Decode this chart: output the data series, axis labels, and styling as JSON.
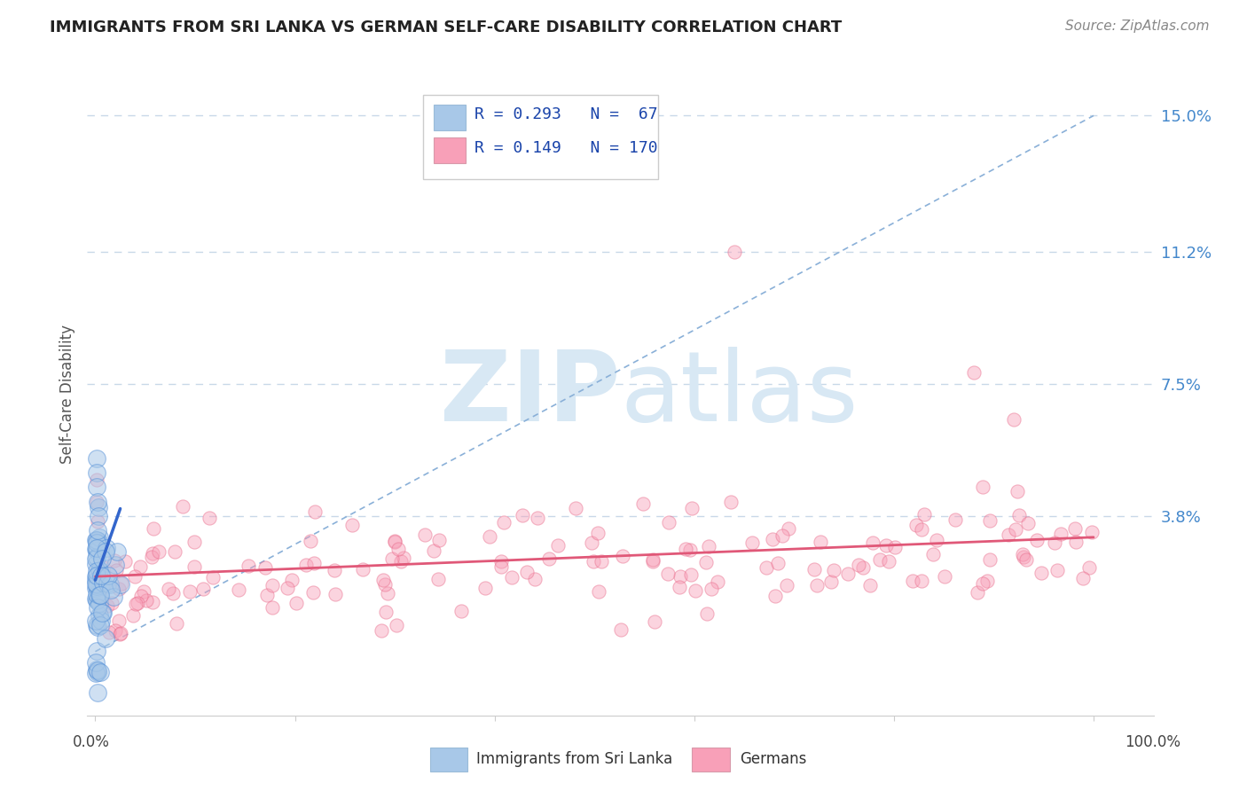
{
  "title": "IMMIGRANTS FROM SRI LANKA VS GERMAN SELF-CARE DISABILITY CORRELATION CHART",
  "source": "Source: ZipAtlas.com",
  "ylabel": "Self-Care Disability",
  "ytick_vals": [
    0.038,
    0.075,
    0.112,
    0.15
  ],
  "ytick_labels": [
    "3.8%",
    "7.5%",
    "11.2%",
    "15.0%"
  ],
  "xlim": [
    -0.008,
    1.06
  ],
  "ylim": [
    -0.018,
    0.162
  ],
  "legend_r1": "R = 0.293",
  "legend_n1": "N =  67",
  "legend_r2": "R = 0.149",
  "legend_n2": "N = 170",
  "color_blue_fill": "#a8c8e8",
  "color_blue_edge": "#5590d8",
  "color_pink_fill": "#f8a0b8",
  "color_pink_edge": "#e86888",
  "color_trend_blue": "#3366cc",
  "color_trend_pink": "#e05878",
  "color_diag": "#8ab0d8",
  "color_grid": "#c8d8e8",
  "color_watermark": "#d8e8f4",
  "color_bg": "#ffffff",
  "color_ytick": "#4488cc",
  "color_title": "#222222",
  "color_source": "#888888",
  "watermark_zip": "ZIP",
  "watermark_atlas": "atlas",
  "title_fontsize": 13,
  "source_fontsize": 11,
  "ytick_fontsize": 13,
  "ylabel_fontsize": 12,
  "legend_fontsize": 13,
  "dot_size_blue": 200,
  "dot_size_pink": 120,
  "dot_alpha_blue": 0.55,
  "dot_alpha_pink": 0.45,
  "trend_lw": 2.0,
  "diag_lw": 1.2
}
